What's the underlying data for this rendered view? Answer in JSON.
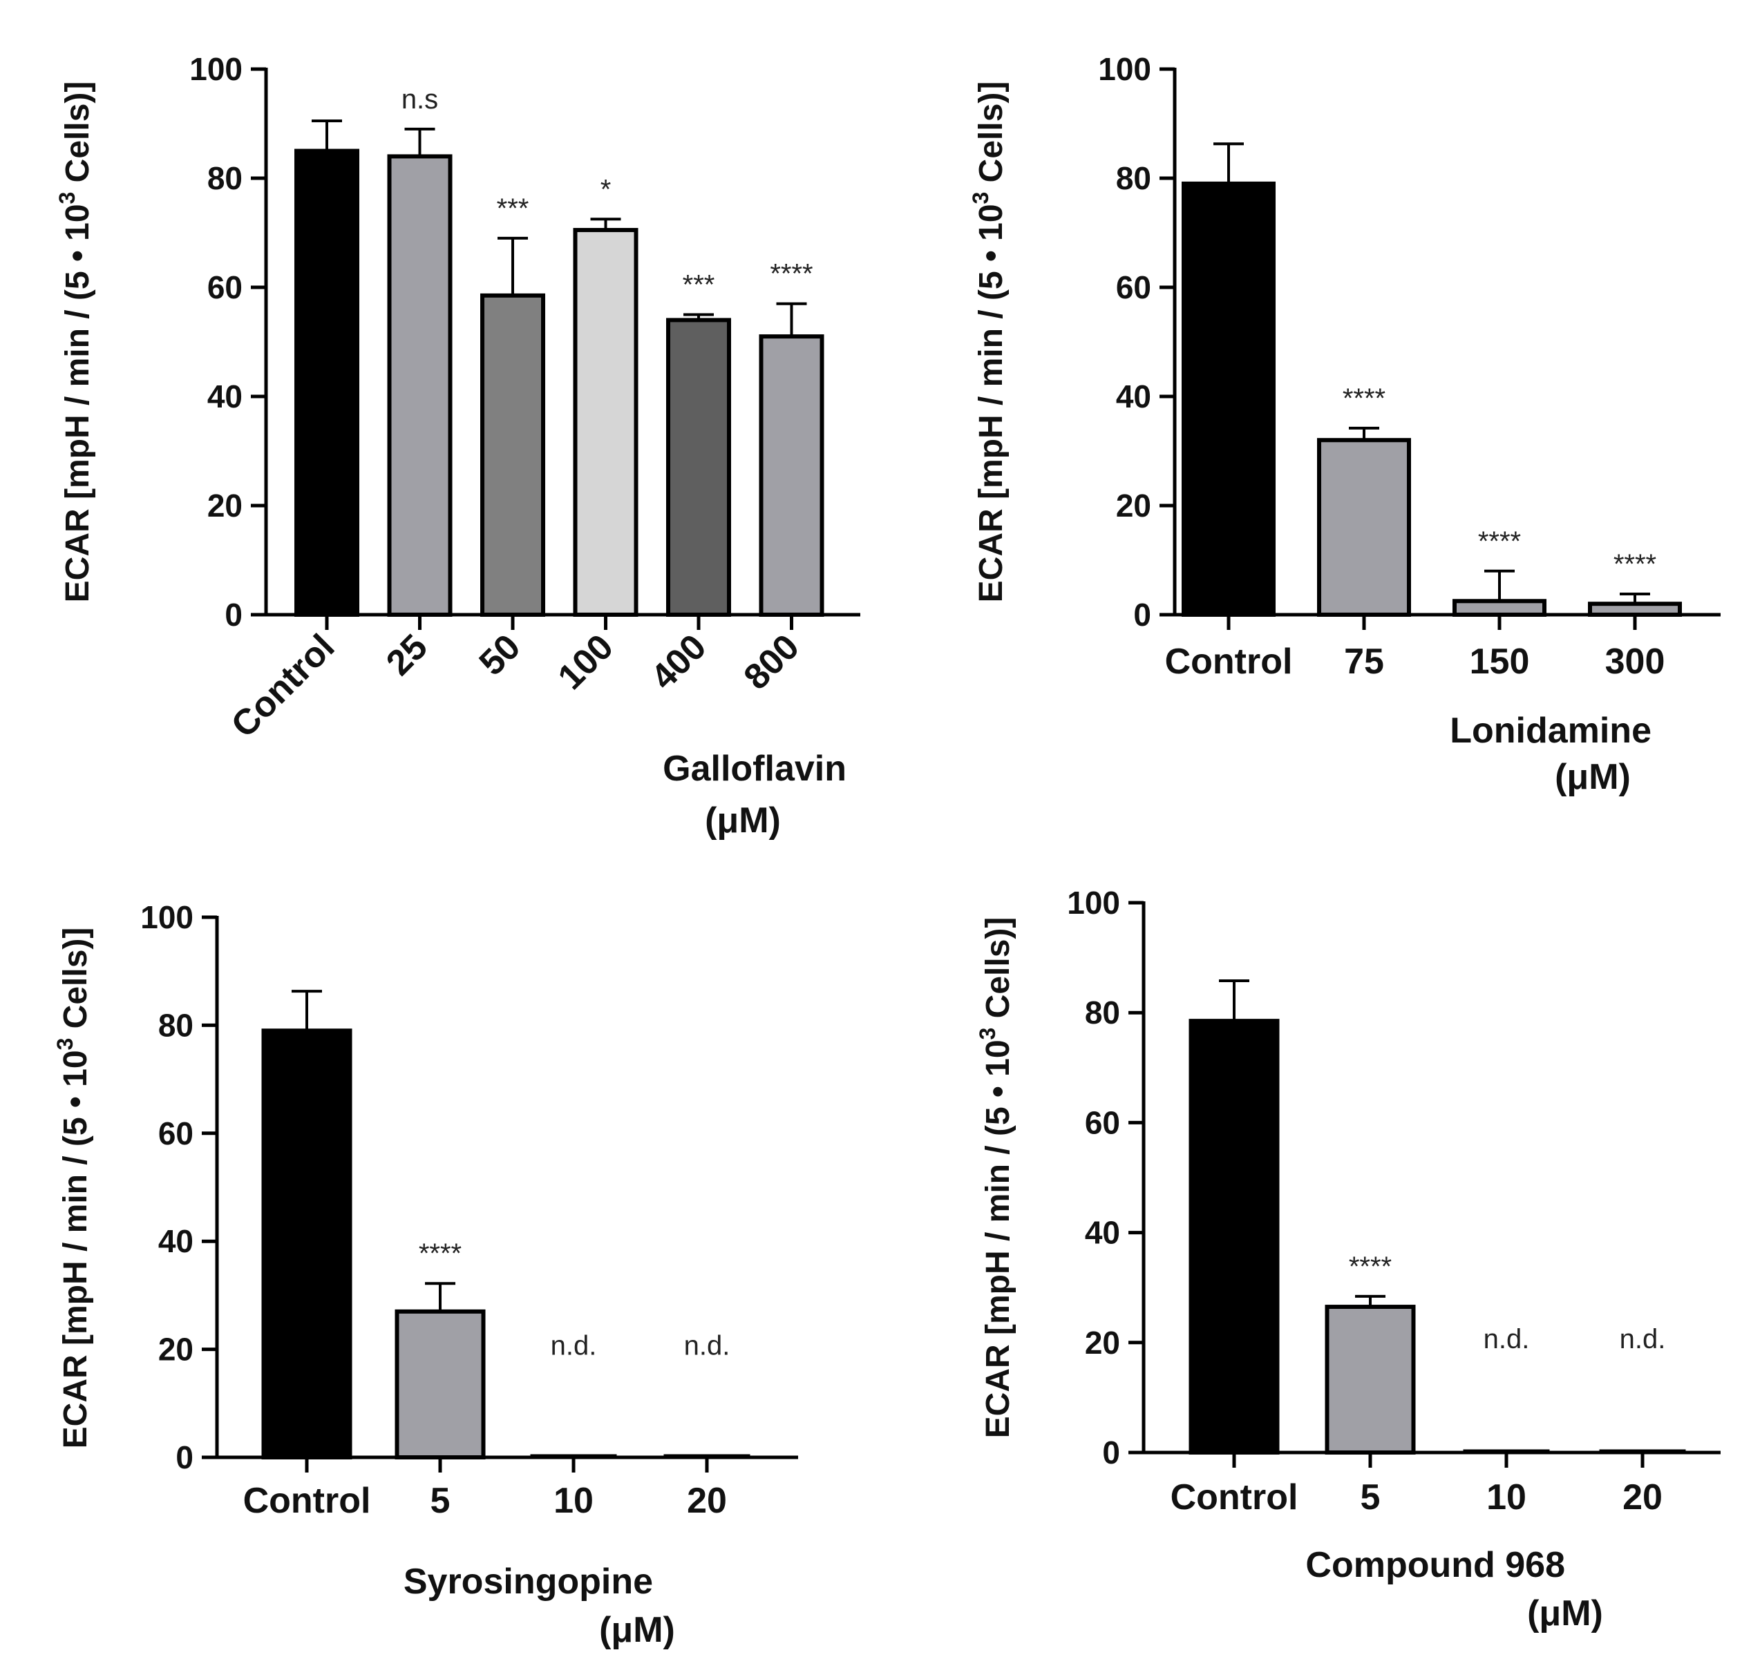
{
  "figure": {
    "description_free": true
  },
  "chart_data": [
    {
      "type": "bar",
      "panel": "top-left",
      "xlabel": "Galloflavin",
      "xunit": "(μM)",
      "ylabel_parts": [
        "ECAR [mpH / min / (5 • 10",
        "3",
        " Cells)]"
      ],
      "ylim": [
        0,
        100
      ],
      "yticks": [
        "0",
        "20",
        "40",
        "60",
        "80",
        "100"
      ],
      "rotated_labels": true,
      "categories": [
        "Control",
        "25",
        "50",
        "100",
        "400",
        "800"
      ],
      "values": [
        85,
        84,
        58.5,
        70.5,
        54,
        51
      ],
      "errors": [
        5.5,
        5,
        10.5,
        2,
        1,
        6
      ],
      "significance": [
        "",
        "n.s",
        "***",
        "*",
        "***",
        "****"
      ],
      "colors": [
        "#000000",
        "#a0a0a6",
        "#808080",
        "#d6d6d6",
        "#5f5f5f",
        "#a0a0a6"
      ]
    },
    {
      "type": "bar",
      "panel": "top-right",
      "xlabel": "Lonidamine",
      "xunit": "(μM)",
      "ylabel_parts": [
        "ECAR [mpH / min / (5 • 10",
        "3",
        " Cells)]"
      ],
      "ylim": [
        0,
        100
      ],
      "yticks": [
        "0",
        "20",
        "40",
        "60",
        "80",
        "100"
      ],
      "rotated_labels": false,
      "categories": [
        "Control",
        "75",
        "150",
        "300"
      ],
      "values": [
        79,
        32,
        2.5,
        2
      ],
      "errors": [
        7.3,
        2.2,
        5.5,
        1.8
      ],
      "significance": [
        "",
        "****",
        "****",
        "****"
      ],
      "colors": [
        "#000000",
        "#a0a0a6",
        "#a0a0a6",
        "#a0a0a6"
      ]
    },
    {
      "type": "bar",
      "panel": "bottom-left",
      "xlabel": "Syrosingopine",
      "xunit": "(μM)",
      "ylabel_parts": [
        "ECAR [mpH / min / (5 • 10",
        "3",
        " Cells)]"
      ],
      "ylim": [
        0,
        100
      ],
      "yticks": [
        "0",
        "20",
        "40",
        "60",
        "80",
        "100"
      ],
      "rotated_labels": false,
      "categories": [
        "Control",
        "5",
        "10",
        "20"
      ],
      "values": [
        79,
        27,
        0,
        0
      ],
      "errors": [
        7.3,
        5.2,
        0,
        0
      ],
      "significance": [
        "",
        "****",
        "n.d.",
        "n.d."
      ],
      "colors": [
        "#000000",
        "#a0a0a6",
        "#a0a0a6",
        "#a0a0a6"
      ]
    },
    {
      "type": "bar",
      "panel": "bottom-right",
      "xlabel": "Compound 968",
      "xunit": "(μM)",
      "ylabel_parts": [
        "ECAR [mpH / min / (5 • 10",
        "3",
        " Cells)]"
      ],
      "ylim": [
        0,
        100
      ],
      "yticks": [
        "0",
        "20",
        "40",
        "60",
        "80",
        "100"
      ],
      "rotated_labels": false,
      "categories": [
        "Control",
        "5",
        "10",
        "20"
      ],
      "values": [
        78.5,
        26.5,
        0,
        0
      ],
      "errors": [
        7.3,
        1.9,
        0,
        0
      ],
      "significance": [
        "",
        "****",
        "n.d.",
        "n.d."
      ],
      "colors": [
        "#000000",
        "#a0a0a6",
        "#a0a0a6",
        "#a0a0a6"
      ]
    }
  ]
}
